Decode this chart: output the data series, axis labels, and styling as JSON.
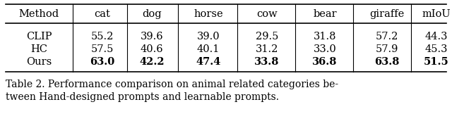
{
  "columns": [
    "Method",
    "cat",
    "dog",
    "horse",
    "cow",
    "bear",
    "giraffe",
    "mIoU"
  ],
  "rows": [
    {
      "method": "CLIP",
      "values": [
        "55.2",
        "39.6",
        "39.0",
        "29.5",
        "31.8",
        "57.2",
        "44.3"
      ],
      "bold": false
    },
    {
      "method": "HC",
      "values": [
        "57.5",
        "40.6",
        "40.1",
        "31.2",
        "33.0",
        "57.9",
        "45.3"
      ],
      "bold": false
    },
    {
      "method": "Ours",
      "values": [
        "63.0",
        "42.2",
        "47.4",
        "33.8",
        "36.8",
        "63.8",
        "51.5"
      ],
      "bold": true
    }
  ],
  "caption_line1": "Table 2. Performance comparison on animal related categories be-",
  "caption_line2": "tween Hand-designed prompts and learnable prompts.",
  "bg_color": "#ffffff",
  "text_color": "#000000",
  "font_size": 10.5,
  "caption_font_size": 10.0,
  "fig_width": 6.4,
  "fig_height": 1.89
}
